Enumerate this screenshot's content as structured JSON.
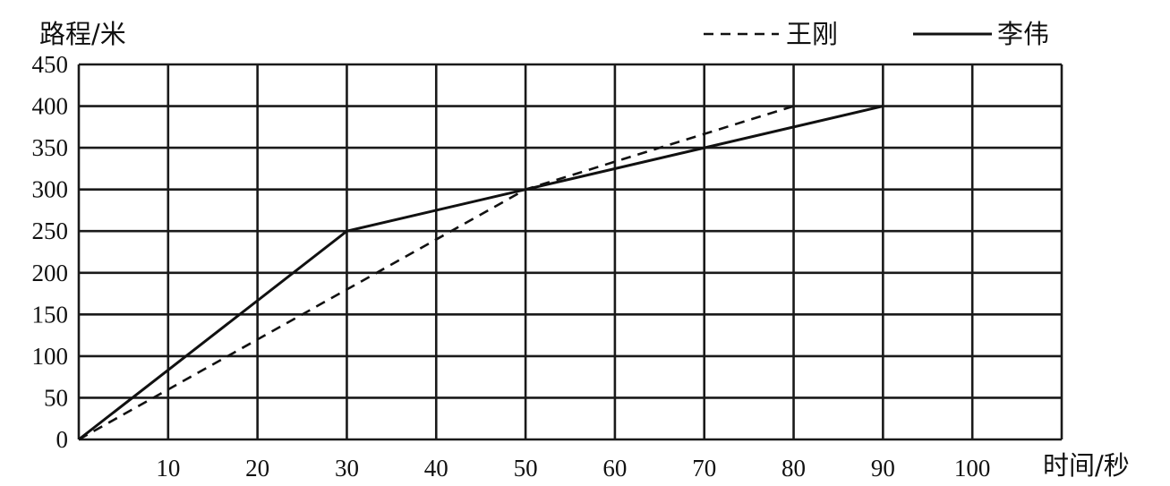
{
  "chart_data": {
    "type": "line",
    "ylabel": "路程/米",
    "xlabel": "时间/秒",
    "x_ticks": [
      10,
      20,
      30,
      40,
      50,
      60,
      70,
      80,
      90,
      100
    ],
    "y_ticks": [
      0,
      50,
      100,
      150,
      200,
      250,
      300,
      350,
      400,
      450
    ],
    "xlim": [
      0,
      110
    ],
    "ylim": [
      0,
      450
    ],
    "grid": true,
    "legend_position": "top-right",
    "series": [
      {
        "name": "王刚",
        "style": "dashed",
        "color": "#111111",
        "points": [
          [
            0,
            0
          ],
          [
            50,
            300
          ],
          [
            80,
            400
          ]
        ]
      },
      {
        "name": "李伟",
        "style": "solid",
        "color": "#111111",
        "points": [
          [
            0,
            0
          ],
          [
            30,
            250
          ],
          [
            50,
            300
          ],
          [
            90,
            400
          ]
        ]
      }
    ]
  }
}
